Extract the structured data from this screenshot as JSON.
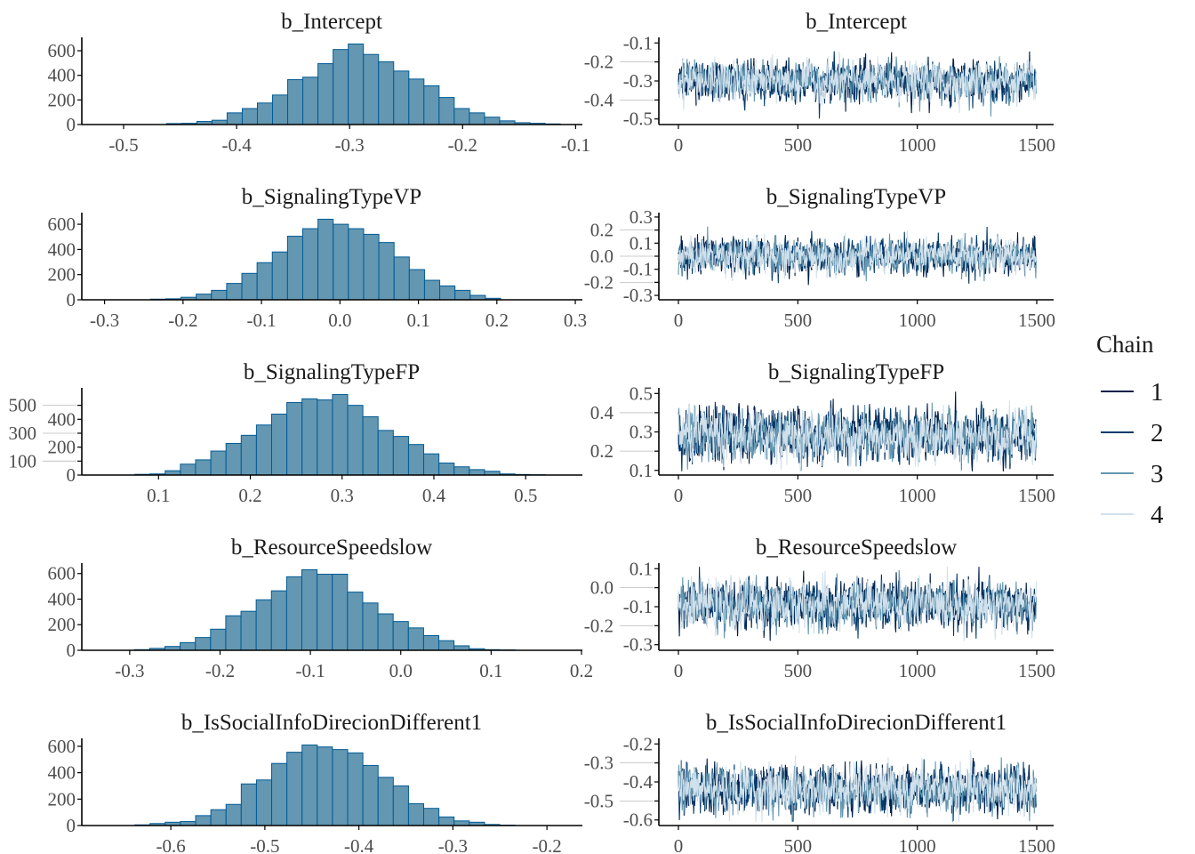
{
  "chart_data": [
    {
      "type": "bar",
      "panel": "histogram",
      "title": "b_Intercept",
      "bin_start": -0.462,
      "bin_width": 0.0134,
      "values": [
        8,
        10,
        25,
        35,
        95,
        130,
        175,
        240,
        365,
        385,
        495,
        610,
        655,
        570,
        510,
        435,
        370,
        315,
        220,
        130,
        95,
        60,
        30,
        15,
        10,
        5
      ],
      "xlim": [
        -0.537,
        -0.094
      ],
      "xticks": [
        "-0.5",
        "-0.4",
        "-0.3",
        "-0.2",
        "-0.1"
      ],
      "xtick_values": [
        -0.5,
        -0.4,
        -0.3,
        -0.2,
        -0.1
      ],
      "yticks": [
        "0",
        "200",
        "400",
        "600"
      ],
      "ytick_values": [
        0,
        200,
        400,
        600
      ],
      "grid": false
    },
    {
      "type": "bar",
      "panel": "histogram",
      "title": "b_SignalingTypeVP",
      "bin_start": -0.2414,
      "bin_width": 0.0194,
      "values": [
        5,
        8,
        20,
        45,
        75,
        130,
        210,
        295,
        380,
        505,
        565,
        640,
        600,
        565,
        520,
        455,
        340,
        240,
        155,
        110,
        75,
        35,
        12
      ],
      "xlim": [
        -0.329,
        0.309
      ],
      "xticks": [
        "-0.3",
        "-0.2",
        "-0.1",
        "0.0",
        "0.1",
        "0.2",
        "0.3"
      ],
      "xtick_values": [
        -0.3,
        -0.2,
        -0.1,
        0,
        0.1,
        0.2,
        0.3
      ],
      "yticks": [
        "0",
        "200",
        "400",
        "600"
      ],
      "ytick_values": [
        0,
        200,
        400,
        600
      ],
      "grid": false
    },
    {
      "type": "bar",
      "panel": "histogram",
      "title": "b_SignalingTypeFP",
      "bin_start": 0.0741,
      "bin_width": 0.01657,
      "values": [
        5,
        8,
        31,
        78,
        109,
        172,
        227,
        285,
        359,
        437,
        520,
        547,
        539,
        578,
        500,
        418,
        320,
        277,
        219,
        152,
        86,
        59,
        39,
        27,
        8,
        4,
        2
      ],
      "xlim": [
        0.0164,
        0.5618
      ],
      "xticks": [
        "0.1",
        "0.2",
        "0.3",
        "0.4",
        "0.5"
      ],
      "xtick_values": [
        0.1,
        0.2,
        0.3,
        0.4,
        0.5
      ],
      "yticks": [
        "0",
        "100",
        "200",
        "300",
        "400",
        "500"
      ],
      "ytick_values": [
        0,
        100,
        200,
        300,
        400,
        500
      ],
      "grid": false
    },
    {
      "type": "bar",
      "panel": "histogram",
      "title": "b_ResourceSpeedslow",
      "bin_start": -0.2947,
      "bin_width": 0.01684,
      "values": [
        5,
        15,
        30,
        60,
        100,
        165,
        270,
        305,
        395,
        465,
        575,
        630,
        595,
        595,
        455,
        370,
        285,
        225,
        175,
        115,
        75,
        35,
        12,
        5,
        3
      ],
      "xlim": [
        -0.353,
        0.201
      ],
      "xticks": [
        "-0.3",
        "-0.2",
        "-0.1",
        "0.0",
        "0.1",
        "0.2"
      ],
      "xtick_values": [
        -0.3,
        -0.2,
        -0.1,
        0,
        0.1,
        0.2
      ],
      "yticks": [
        "0",
        "200",
        "400",
        "600"
      ],
      "ytick_values": [
        0,
        200,
        400,
        600
      ],
      "grid": false
    },
    {
      "type": "bar",
      "panel": "histogram",
      "title": "b_IsSocialInfoDirecionDifferent1",
      "bin_start": -0.6383,
      "bin_width": 0.01617,
      "values": [
        5,
        15,
        25,
        30,
        75,
        120,
        160,
        315,
        345,
        470,
        555,
        610,
        595,
        575,
        550,
        455,
        365,
        300,
        165,
        130,
        65,
        35,
        25,
        8,
        3
      ],
      "xlim": [
        -0.6947,
        -0.1623
      ],
      "xticks": [
        "-0.6",
        "-0.5",
        "-0.4",
        "-0.3",
        "-0.2"
      ],
      "xtick_values": [
        -0.6,
        -0.5,
        -0.4,
        -0.3,
        -0.2
      ],
      "yticks": [
        "0",
        "200",
        "400",
        "600"
      ],
      "ytick_values": [
        0,
        200,
        400,
        600
      ],
      "grid": false
    },
    {
      "type": "line",
      "panel": "trace",
      "title": "b_Intercept",
      "iterations": 1500,
      "chains": 4,
      "center": -0.3,
      "spread": 0.05,
      "xlim": [
        0,
        1500
      ],
      "xticks": [
        "0",
        "500",
        "1000",
        "1500"
      ],
      "xtick_values": [
        0,
        500,
        1000,
        1500
      ],
      "ylim": [
        -0.52,
        -0.08
      ],
      "yticks": [
        "-0.1",
        "-0.2",
        "-0.3",
        "-0.4",
        "-0.5"
      ],
      "ytick_values": [
        -0.1,
        -0.2,
        -0.3,
        -0.4,
        -0.5
      ]
    },
    {
      "type": "line",
      "panel": "trace",
      "title": "b_SignalingTypeVP",
      "iterations": 1500,
      "chains": 4,
      "center": 0.0,
      "spread": 0.065,
      "xlim": [
        0,
        1500
      ],
      "xticks": [
        "0",
        "500",
        "1000",
        "1500"
      ],
      "xtick_values": [
        0,
        500,
        1000,
        1500
      ],
      "ylim": [
        -0.32,
        0.32
      ],
      "yticks": [
        "0.3",
        "0.2",
        "0.1",
        "0.0",
        "-0.1",
        "-0.2",
        "-0.3"
      ],
      "ytick_values": [
        0.3,
        0.2,
        0.1,
        0,
        -0.1,
        -0.2,
        -0.3
      ]
    },
    {
      "type": "line",
      "panel": "trace",
      "title": "b_SignalingTypeFP",
      "iterations": 1500,
      "chains": 4,
      "center": 0.28,
      "spread": 0.065,
      "xlim": [
        0,
        1500
      ],
      "xticks": [
        "0",
        "500",
        "1000",
        "1500"
      ],
      "xtick_values": [
        0,
        500,
        1000,
        1500
      ],
      "ylim": [
        0.085,
        0.52
      ],
      "yticks": [
        "0.5",
        "0.4",
        "0.3",
        "0.2",
        "0.1"
      ],
      "ytick_values": [
        0.5,
        0.4,
        0.3,
        0.2,
        0.1
      ]
    },
    {
      "type": "line",
      "panel": "trace",
      "title": "b_ResourceSpeedslow",
      "iterations": 1500,
      "chains": 4,
      "center": -0.09,
      "spread": 0.06,
      "xlim": [
        0,
        1500
      ],
      "xticks": [
        "0",
        "500",
        "1000",
        "1500"
      ],
      "xtick_values": [
        0,
        500,
        1000,
        1500
      ],
      "ylim": [
        -0.32,
        0.12
      ],
      "yticks": [
        "0.1",
        "0.0",
        "-0.1",
        "-0.2",
        "-0.3"
      ],
      "ytick_values": [
        0.1,
        0,
        -0.1,
        -0.2,
        -0.3
      ]
    },
    {
      "type": "line",
      "panel": "trace",
      "title": "b_IsSocialInfoDirecionDifferent1",
      "iterations": 1500,
      "chains": 4,
      "center": -0.44,
      "spread": 0.06,
      "xlim": [
        0,
        1500
      ],
      "xticks": [
        "0",
        "500",
        "1000",
        "1500"
      ],
      "xtick_values": [
        0,
        500,
        1000,
        1500
      ],
      "ylim": [
        -0.62,
        -0.18
      ],
      "yticks": [
        "-0.2",
        "-0.3",
        "-0.4",
        "-0.5",
        "-0.6"
      ],
      "ytick_values": [
        -0.2,
        -0.3,
        -0.4,
        -0.5,
        -0.6
      ]
    }
  ],
  "legend": {
    "title": "Chain",
    "position": "right",
    "items": [
      {
        "label": "1",
        "color": "#011f4b"
      },
      {
        "label": "2",
        "color": "#03396c"
      },
      {
        "label": "3",
        "color": "#6497b1"
      },
      {
        "label": "4",
        "color": "#d1e1ec"
      }
    ]
  },
  "colors": {
    "hist_fill": "#6497b1",
    "hist_outline": "#005b96",
    "axis": "#000000"
  }
}
